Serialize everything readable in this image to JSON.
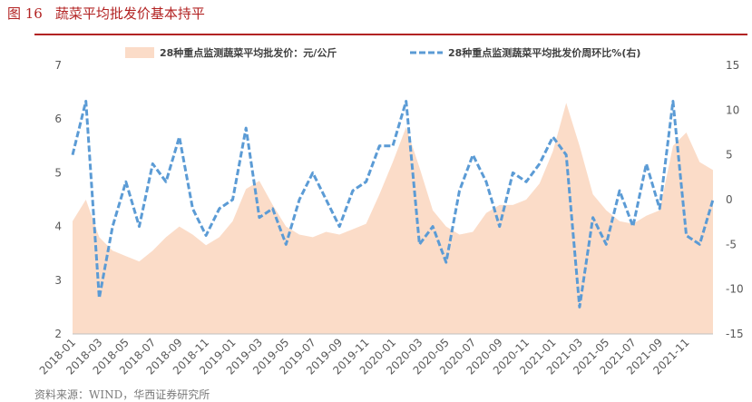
{
  "figure": {
    "number": "图 16",
    "title": "蔬菜平均批发价基本持平",
    "source": "资料来源：WIND，华西证券研究所"
  },
  "colors": {
    "title_red": "#b22222",
    "area_fill": "#fbdcc8",
    "line_blue": "#5b9bd5"
  },
  "chart_data": {
    "type": "area+line",
    "legend_position": "top",
    "grid": false,
    "x_tick_labels": [
      "2018-01",
      "2018-03",
      "2018-05",
      "2018-07",
      "2018-09",
      "2018-11",
      "2019-01",
      "2019-03",
      "2019-05",
      "2019-07",
      "2019-09",
      "2019-11",
      "2020-01",
      "2020-03",
      "2020-05",
      "2020-07",
      "2020-09",
      "2020-11",
      "2021-01",
      "2021-03",
      "2021-05",
      "2021-07",
      "2021-09",
      "2021-11"
    ],
    "y_left": {
      "range": [
        2,
        7
      ],
      "ticks": [
        2,
        3,
        4,
        5,
        6,
        7
      ]
    },
    "y_right": {
      "range": [
        -15,
        15
      ],
      "ticks": [
        -15,
        -10,
        -5,
        0,
        5,
        10,
        15
      ]
    },
    "x": [
      "2018-01",
      "2018-02",
      "2018-03",
      "2018-04",
      "2018-05",
      "2018-06",
      "2018-07",
      "2018-08",
      "2018-09",
      "2018-10",
      "2018-11",
      "2018-12",
      "2019-01",
      "2019-02",
      "2019-03",
      "2019-04",
      "2019-05",
      "2019-06",
      "2019-07",
      "2019-08",
      "2019-09",
      "2019-10",
      "2019-11",
      "2019-12",
      "2020-01",
      "2020-02",
      "2020-03",
      "2020-04",
      "2020-05",
      "2020-06",
      "2020-07",
      "2020-08",
      "2020-09",
      "2020-10",
      "2020-11",
      "2020-12",
      "2021-01",
      "2021-02",
      "2021-03",
      "2021-04",
      "2021-05",
      "2021-06",
      "2021-07",
      "2021-08",
      "2021-09",
      "2021-10",
      "2021-11",
      "2021-12",
      "2022-01"
    ],
    "series": [
      {
        "name": "28种重点监测蔬菜平均批发价：元/公斤",
        "type": "area",
        "axis": "left",
        "values": [
          4.1,
          4.5,
          3.8,
          3.55,
          3.45,
          3.35,
          3.55,
          3.8,
          4.0,
          3.85,
          3.65,
          3.8,
          4.1,
          4.7,
          4.85,
          4.4,
          4.0,
          3.85,
          3.8,
          3.9,
          3.85,
          3.95,
          4.05,
          4.6,
          5.2,
          5.85,
          5.1,
          4.3,
          4.0,
          3.85,
          3.9,
          4.25,
          4.4,
          4.4,
          4.5,
          4.8,
          5.4,
          6.3,
          5.5,
          4.6,
          4.3,
          4.1,
          4.05,
          4.2,
          4.3,
          5.5,
          5.75,
          5.2,
          5.05
        ]
      },
      {
        "name": "28种重点监测蔬菜平均批发价周环比%(右)",
        "type": "line",
        "axis": "right",
        "values": [
          5,
          11,
          -11,
          -3,
          2,
          -3,
          4,
          2,
          7,
          -1,
          -4,
          -1,
          0,
          8,
          -2,
          -1,
          -5,
          0,
          3,
          0,
          -3,
          1,
          2,
          6,
          6,
          11,
          -5,
          -3,
          -7,
          1,
          5,
          2,
          -3,
          3,
          2,
          4,
          7,
          5,
          -12,
          -2,
          -5,
          1,
          -3,
          4,
          -1,
          11,
          -4,
          -5,
          0
        ]
      }
    ]
  }
}
